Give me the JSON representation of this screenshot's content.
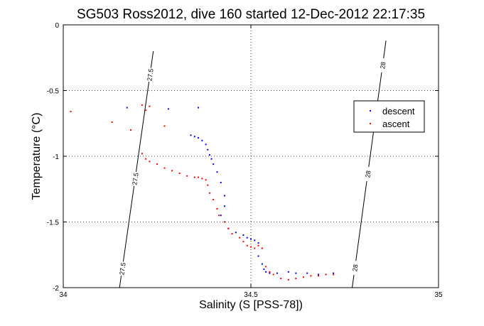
{
  "chart_data": {
    "type": "scatter",
    "title": "SG503 Ross2012, dive 160 started 12-Dec-2012 22:17:35",
    "xlabel": "Salinity (S [PSS-78])",
    "ylabel": "Temperature (°C)",
    "xlim": [
      34,
      35
    ],
    "ylim": [
      -2,
      0
    ],
    "x_ticks": [
      "34",
      "34.5",
      "35"
    ],
    "y_ticks": [
      "-2",
      "-1.5",
      "-1",
      "-0.5",
      "0"
    ],
    "grid": true,
    "legend_position": "right",
    "isopycnals": [
      {
        "label": "27.5",
        "points": [
          [
            34.15,
            -2.0
          ],
          [
            34.24,
            -0.2
          ]
        ]
      },
      {
        "label": "28",
        "points": [
          [
            34.77,
            -2.0
          ],
          [
            34.86,
            -0.12
          ]
        ]
      }
    ],
    "series": [
      {
        "name": "descent",
        "color": "#0000ff",
        "points": [
          [
            34.17,
            -0.63
          ],
          [
            34.28,
            -0.64
          ],
          [
            34.36,
            -0.63
          ],
          [
            34.34,
            -0.84
          ],
          [
            34.35,
            -0.85
          ],
          [
            34.36,
            -0.86
          ],
          [
            34.37,
            -0.88
          ],
          [
            34.38,
            -0.91
          ],
          [
            34.385,
            -0.95
          ],
          [
            34.39,
            -0.99
          ],
          [
            34.395,
            -1.02
          ],
          [
            34.4,
            -1.06
          ],
          [
            34.41,
            -1.12
          ],
          [
            34.42,
            -1.2
          ],
          [
            34.43,
            -1.3
          ],
          [
            34.43,
            -1.38
          ],
          [
            34.42,
            -1.45
          ],
          [
            34.43,
            -1.5
          ],
          [
            34.44,
            -1.55
          ],
          [
            34.46,
            -1.58
          ],
          [
            34.48,
            -1.6
          ],
          [
            34.49,
            -1.62
          ],
          [
            34.5,
            -1.63
          ],
          [
            34.51,
            -1.64
          ],
          [
            34.52,
            -1.66
          ],
          [
            34.53,
            -1.7
          ],
          [
            34.52,
            -1.76
          ],
          [
            34.53,
            -1.82
          ],
          [
            34.535,
            -1.86
          ],
          [
            34.54,
            -1.88
          ],
          [
            34.55,
            -1.89
          ],
          [
            34.57,
            -1.89
          ],
          [
            34.6,
            -1.88
          ],
          [
            34.62,
            -1.89
          ],
          [
            34.65,
            -1.89
          ],
          [
            34.68,
            -1.9
          ],
          [
            34.7,
            -1.9
          ],
          [
            34.72,
            -1.89
          ]
        ]
      },
      {
        "name": "ascent",
        "color": "#ff0000",
        "points": [
          [
            34.02,
            -0.66
          ],
          [
            34.13,
            -0.74
          ],
          [
            34.18,
            -0.8
          ],
          [
            34.21,
            -0.61
          ],
          [
            34.22,
            -0.65
          ],
          [
            34.23,
            -0.62
          ],
          [
            34.27,
            -0.77
          ],
          [
            34.21,
            -0.98
          ],
          [
            34.22,
            -1.02
          ],
          [
            34.23,
            -1.04
          ],
          [
            34.25,
            -1.06
          ],
          [
            34.27,
            -1.09
          ],
          [
            34.29,
            -1.11
          ],
          [
            34.31,
            -1.13
          ],
          [
            34.33,
            -1.15
          ],
          [
            34.35,
            -1.16
          ],
          [
            34.36,
            -1.16
          ],
          [
            34.37,
            -1.17
          ],
          [
            34.38,
            -1.18
          ],
          [
            34.385,
            -1.22
          ],
          [
            34.39,
            -1.28
          ],
          [
            34.4,
            -1.33
          ],
          [
            34.41,
            -1.4
          ],
          [
            34.415,
            -1.45
          ],
          [
            34.43,
            -1.5
          ],
          [
            34.44,
            -1.55
          ],
          [
            34.45,
            -1.59
          ],
          [
            34.47,
            -1.62
          ],
          [
            34.48,
            -1.65
          ],
          [
            34.49,
            -1.68
          ],
          [
            34.5,
            -1.69
          ],
          [
            34.51,
            -1.7
          ],
          [
            34.52,
            -1.68
          ],
          [
            34.53,
            -1.7
          ],
          [
            34.54,
            -1.84
          ],
          [
            34.55,
            -1.88
          ],
          [
            34.56,
            -1.9
          ],
          [
            34.58,
            -1.93
          ],
          [
            34.6,
            -1.94
          ],
          [
            34.62,
            -1.93
          ],
          [
            34.64,
            -1.92
          ],
          [
            34.66,
            -1.91
          ],
          [
            34.68,
            -1.91
          ],
          [
            34.7,
            -1.9
          ],
          [
            34.72,
            -1.9
          ]
        ]
      }
    ]
  }
}
